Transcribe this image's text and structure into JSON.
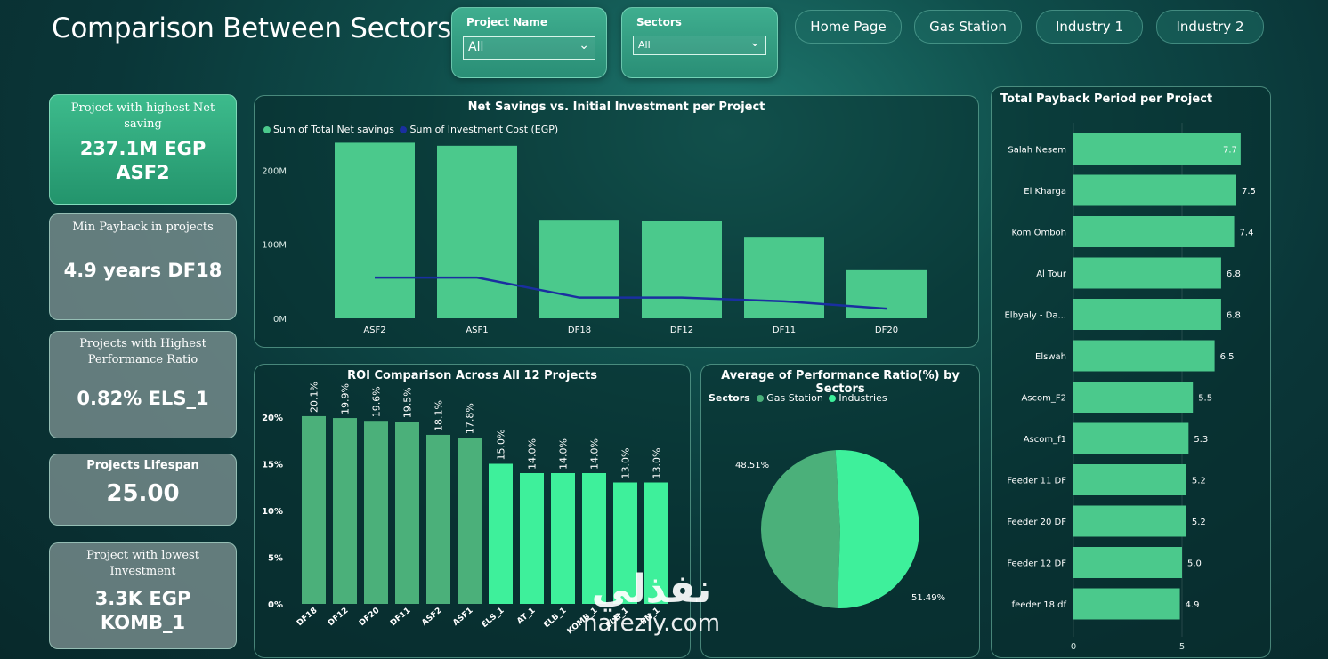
{
  "header": {
    "title": "Comparison Between Sectors"
  },
  "slicers": {
    "project": {
      "label": "Project Name",
      "value": "All"
    },
    "sectors": {
      "label": "Sectors",
      "value": "All"
    }
  },
  "nav": {
    "home": "Home Page",
    "gas": "Gas Station",
    "ind1": "Industry 1",
    "ind2": "Industry 2"
  },
  "kpis": [
    {
      "title": "Project with highest Net saving",
      "value1": "237.1M EGP",
      "value2": "ASF2"
    },
    {
      "title": "Min Payback in projects",
      "value1": "4.9 years DF18",
      "value2": ""
    },
    {
      "title": "Projects with Highest Performance Ratio",
      "value1": "0.82% ELS_1",
      "value2": ""
    },
    {
      "title": "Projects Lifespan",
      "value1": "25.00",
      "value2": ""
    },
    {
      "title": "Project with lowest Investment",
      "value1": "3.3K EGP",
      "value2": "KOMB_1"
    }
  ],
  "colors": {
    "bar": "#4bc98c",
    "line": "#1a2fa0",
    "roi_dark": "#4bb07a",
    "roi_light": "#3ef09b",
    "gas": "#4bb07a",
    "industries": "#3ef09b"
  },
  "chart_data": [
    {
      "type": "bar",
      "title": "Net Savings vs. Initial Investment per Project",
      "categories": [
        "ASF2",
        "ASF1",
        "DF18",
        "DF12",
        "DF11",
        "DF20"
      ],
      "series": [
        {
          "name": "Sum of Total Net savings",
          "values": [
            237.1,
            233,
            133,
            131,
            109,
            65
          ]
        },
        {
          "name": "Sum of Investment Cost (EGP)",
          "values": [
            55,
            55,
            28,
            28,
            23,
            13
          ]
        }
      ],
      "ylim": [
        0,
        240
      ],
      "yticks": [
        "0M",
        "100M",
        "200M"
      ]
    },
    {
      "type": "bar",
      "title": "ROI Comparison Across All 12 Projects",
      "categories": [
        "DF18",
        "DF12",
        "DF20",
        "DF11",
        "ASF2",
        "ASF1",
        "ELS_1",
        "AT_1",
        "ELB_1",
        "KOMB_1",
        "ELH_1",
        "SN_1"
      ],
      "values": [
        20.1,
        19.9,
        19.6,
        19.5,
        18.1,
        17.8,
        15.0,
        14.0,
        14.0,
        14.0,
        13.0,
        13.0
      ],
      "labels": [
        "20.1%",
        "19.9%",
        "19.6%",
        "19.5%",
        "18.1%",
        "17.8%",
        "15.0%",
        "14.0%",
        "14.0%",
        "14.0%",
        "13.0%",
        "13.0%"
      ],
      "ylim": [
        0,
        20
      ],
      "yticks": [
        "0%",
        "5%",
        "10%",
        "15%",
        "20%"
      ]
    },
    {
      "type": "pie",
      "title": "Average of Performance Ratio(%) by Sectors",
      "legend_title": "Sectors",
      "categories": [
        "Gas Station",
        "Industries"
      ],
      "values": [
        48.51,
        51.49
      ],
      "labels": [
        "48.51%",
        "51.49%"
      ]
    },
    {
      "type": "bar",
      "orientation": "horizontal",
      "title": "Total Payback Period per Project",
      "categories": [
        "Salah Nesem",
        "El Kharga",
        "Kom Omboh",
        "Al Tour",
        "Elbyaly - Da...",
        "Elswah",
        "Ascom_F2",
        "Ascom_f1",
        "Feeder 11 DF",
        "Feeder 20 DF",
        "Feeder 12 DF",
        "feeder 18 df"
      ],
      "values": [
        7.7,
        7.5,
        7.4,
        6.8,
        6.8,
        6.5,
        5.5,
        5.3,
        5.2,
        5.2,
        5.0,
        4.9
      ],
      "labels": [
        "7.7",
        "7.5",
        "7.4",
        "6.8",
        "6.8",
        "6.5",
        "5.5",
        "5.3",
        "5.2",
        "5.2",
        "5.0",
        "4.9"
      ],
      "xticks": [
        "0",
        "5"
      ]
    }
  ],
  "watermark": {
    "arabic": "نفذلي",
    "latin": "nafezly.com"
  }
}
